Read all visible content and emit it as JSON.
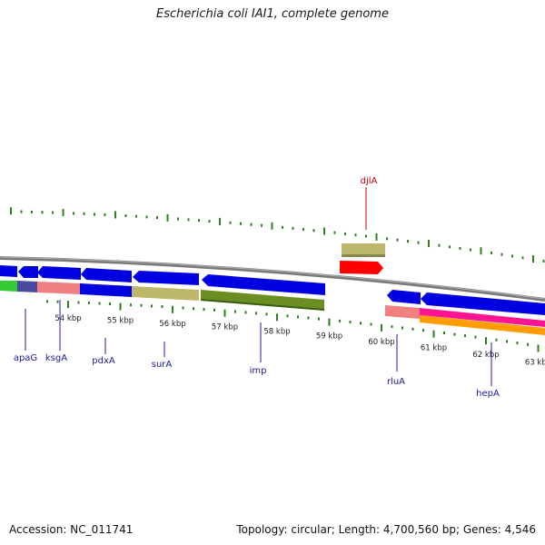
{
  "title": "Escherichia coli IAI1, complete genome",
  "footer": {
    "accession": "Accession: NC_011741",
    "summary": "Topology: circular; Length: 4,700,560 bp; Genes: 4,546"
  },
  "colors": {
    "backbone": "#808080",
    "tick": "#2e7d1e",
    "forward_cds": "#0000e0",
    "gene_label": "#1a1a9c",
    "highlight_label": "#c00000"
  },
  "scale": {
    "unit": "kbp",
    "ticks": [
      {
        "kbp": 54,
        "label": "54 kbp"
      },
      {
        "kbp": 55,
        "label": "55 kbp"
      },
      {
        "kbp": 56,
        "label": "56 kbp"
      },
      {
        "kbp": 57,
        "label": "57 kbp"
      },
      {
        "kbp": 58,
        "label": "58 kbp"
      },
      {
        "kbp": 59,
        "label": "59 kbp"
      },
      {
        "kbp": 60,
        "label": "60 kbp"
      },
      {
        "kbp": 61,
        "label": "61 kbp"
      },
      {
        "kbp": 62,
        "label": "62 kbp"
      },
      {
        "kbp": 63,
        "label": "63 kbp"
      }
    ]
  },
  "genes": [
    {
      "name": "apaG",
      "color": "#4a4aa0"
    },
    {
      "name": "ksgA",
      "color": "#f08080"
    },
    {
      "name": "pdxA",
      "color": "#0000e0"
    },
    {
      "name": "surA",
      "color": "#bdb76b"
    },
    {
      "name": "imp",
      "color": "#6b8e23"
    },
    {
      "name": "djlA",
      "color": "#ff0000"
    },
    {
      "name": "rluA",
      "color": "#f08080"
    },
    {
      "name": "hepA",
      "color": "#ff1493"
    }
  ]
}
